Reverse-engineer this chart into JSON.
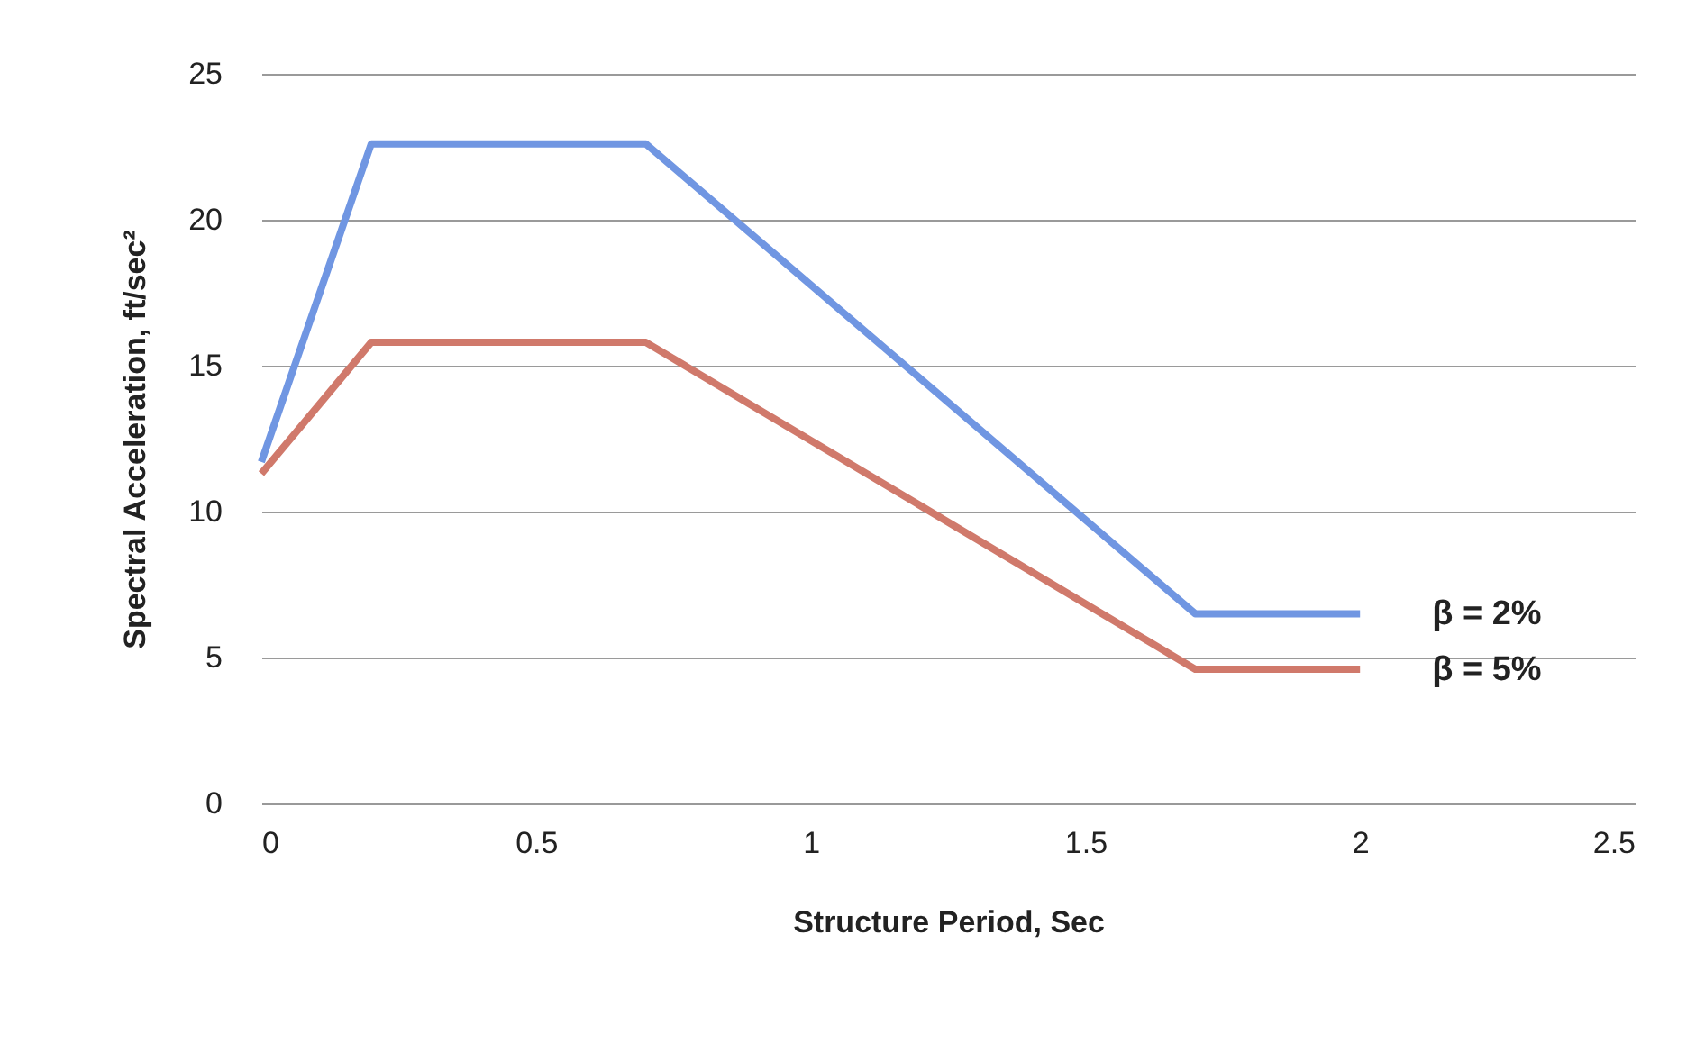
{
  "chart_data": {
    "type": "line",
    "xlabel": "Structure Period, Sec",
    "ylabel": "Spectral Acceleration, ft/sec²",
    "x": [
      0,
      0.2,
      0.7,
      1.7,
      2
    ],
    "series": [
      {
        "name": "β = 2%",
        "color": "#7096e2",
        "values": [
          11.7,
          22.6,
          22.6,
          6.5,
          6.5
        ]
      },
      {
        "name": "β = 5%",
        "color": "#d0796b",
        "values": [
          11.3,
          15.8,
          15.8,
          4.6,
          4.6
        ]
      }
    ],
    "xlim": [
      0,
      2.5
    ],
    "xticks": [
      0,
      0.5,
      1,
      1.5,
      2,
      2.5
    ],
    "ylim": [
      0,
      25
    ],
    "yticks": [
      0,
      5,
      10,
      15,
      20,
      25
    ],
    "grid": "y",
    "line_style": "solid",
    "marker": "none"
  }
}
